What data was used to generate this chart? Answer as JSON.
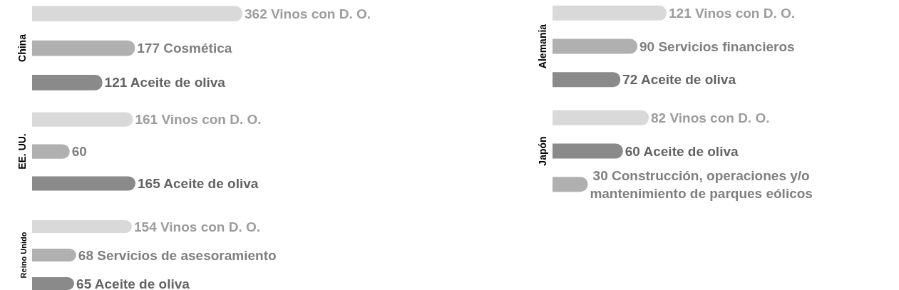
{
  "chart_data": [
    {
      "type": "bar",
      "orientation": "horizontal",
      "ylabel": "China",
      "categories": [
        null,
        null,
        null
      ],
      "values": [
        362,
        177,
        121
      ],
      "colors": [
        "#d9d9d9",
        "#b0b0b0",
        "#8a8a8a"
      ],
      "value_labels": [
        "362 Vinos con D. O.",
        "177 Cosmética",
        "121 Aceite de oliva"
      ]
    },
    {
      "type": "bar",
      "orientation": "horizontal",
      "ylabel": "EE. UU.",
      "categories": [
        null,
        null,
        null
      ],
      "values": [
        161,
        60,
        165
      ],
      "colors": [
        "#d9d9d9",
        "#b0b0b0",
        "#8a8a8a"
      ],
      "value_labels": [
        "161 Vinos con D. O.",
        "60",
        "165 Aceite de oliva"
      ]
    },
    {
      "type": "bar",
      "orientation": "horizontal",
      "ylabel": "Reino Unido",
      "categories": [
        null,
        null,
        null
      ],
      "values": [
        154,
        68,
        65
      ],
      "colors": [
        "#d9d9d9",
        "#b0b0b0",
        "#8a8a8a"
      ],
      "value_labels": [
        "154 Vinos con D. O.",
        "68 Servicios de asesoramiento",
        "65 Aceite de oliva"
      ]
    },
    {
      "type": "bar",
      "orientation": "horizontal",
      "ylabel": "Alemania",
      "categories": [
        null,
        null,
        null
      ],
      "values": [
        121,
        90,
        72
      ],
      "colors": [
        "#d9d9d9",
        "#b0b0b0",
        "#8a8a8a"
      ],
      "value_labels": [
        "121 Vinos con D. O.",
        "90 Servicios financieros",
        "72 Aceite de oliva"
      ]
    },
    {
      "type": "bar",
      "orientation": "horizontal",
      "ylabel": "Japón",
      "categories": [
        null,
        null,
        null
      ],
      "values": [
        82,
        60,
        30
      ],
      "colors": [
        "#d9d9d9",
        "#8a8a8a",
        "#b0b0b0"
      ],
      "value_labels": [
        "82 Vinos con D. O.",
        "60 Aceite de oliva",
        "30 Construcción, operaciones y/o\nmantenimiento de parques eólicos"
      ]
    }
  ]
}
